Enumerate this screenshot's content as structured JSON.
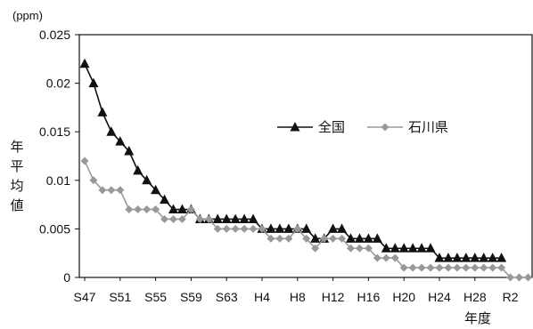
{
  "chart_data": {
    "type": "line",
    "unit_label": "(ppm)",
    "ylabel": "年平均値",
    "xlabel": "年度",
    "ylim": [
      0,
      0.025
    ],
    "yticks": [
      "0",
      "0.005",
      "0.01",
      "0.015",
      "0.02",
      "0.025"
    ],
    "ytick_values": [
      0,
      0.005,
      0.01,
      0.015,
      0.02,
      0.025
    ],
    "grid": false,
    "legend_position": "center-right",
    "x": [
      "S47",
      "S48",
      "S49",
      "S50",
      "S51",
      "S52",
      "S53",
      "S54",
      "S55",
      "S56",
      "S57",
      "S58",
      "S59",
      "S60",
      "S61",
      "S62",
      "S63",
      "H1",
      "H2",
      "H3",
      "H4",
      "H5",
      "H6",
      "H7",
      "H8",
      "H9",
      "H10",
      "H11",
      "H12",
      "H13",
      "H14",
      "H15",
      "H16",
      "H17",
      "H18",
      "H19",
      "H20",
      "H21",
      "H22",
      "H23",
      "H24",
      "H25",
      "H26",
      "H27",
      "H28",
      "H29",
      "H30",
      "R1",
      "R2",
      "R3",
      "R4"
    ],
    "xtick_labels": [
      "S47",
      "S51",
      "S55",
      "S59",
      "S63",
      "H4",
      "H8",
      "H12",
      "H16",
      "H20",
      "H24",
      "H28",
      "R2"
    ],
    "series": [
      {
        "name": "全国",
        "color": "#111111",
        "marker": "triangle",
        "values": [
          0.022,
          0.02,
          0.017,
          0.015,
          0.014,
          0.013,
          0.011,
          0.01,
          0.009,
          0.008,
          0.007,
          0.007,
          0.007,
          0.006,
          0.006,
          0.006,
          0.006,
          0.006,
          0.006,
          0.006,
          0.005,
          0.005,
          0.005,
          0.005,
          0.005,
          0.005,
          0.004,
          0.004,
          0.005,
          0.005,
          0.004,
          0.004,
          0.004,
          0.004,
          0.003,
          0.003,
          0.003,
          0.003,
          0.003,
          0.003,
          0.002,
          0.002,
          0.002,
          0.002,
          0.002,
          0.002,
          0.002,
          0.002,
          null,
          null,
          null
        ]
      },
      {
        "name": "石川県",
        "color": "#999999",
        "marker": "diamond",
        "values": [
          0.012,
          0.01,
          0.009,
          0.009,
          0.009,
          0.007,
          0.007,
          0.007,
          0.007,
          0.006,
          0.006,
          0.006,
          0.007,
          0.006,
          0.006,
          0.005,
          0.005,
          0.005,
          0.005,
          0.005,
          0.005,
          0.004,
          0.004,
          0.004,
          0.005,
          0.004,
          0.003,
          0.004,
          0.004,
          0.004,
          0.003,
          0.003,
          0.003,
          0.002,
          0.002,
          0.002,
          0.001,
          0.001,
          0.001,
          0.001,
          0.001,
          0.001,
          0.001,
          0.001,
          0.001,
          0.001,
          0.001,
          0.001,
          0,
          0,
          0
        ]
      }
    ]
  }
}
